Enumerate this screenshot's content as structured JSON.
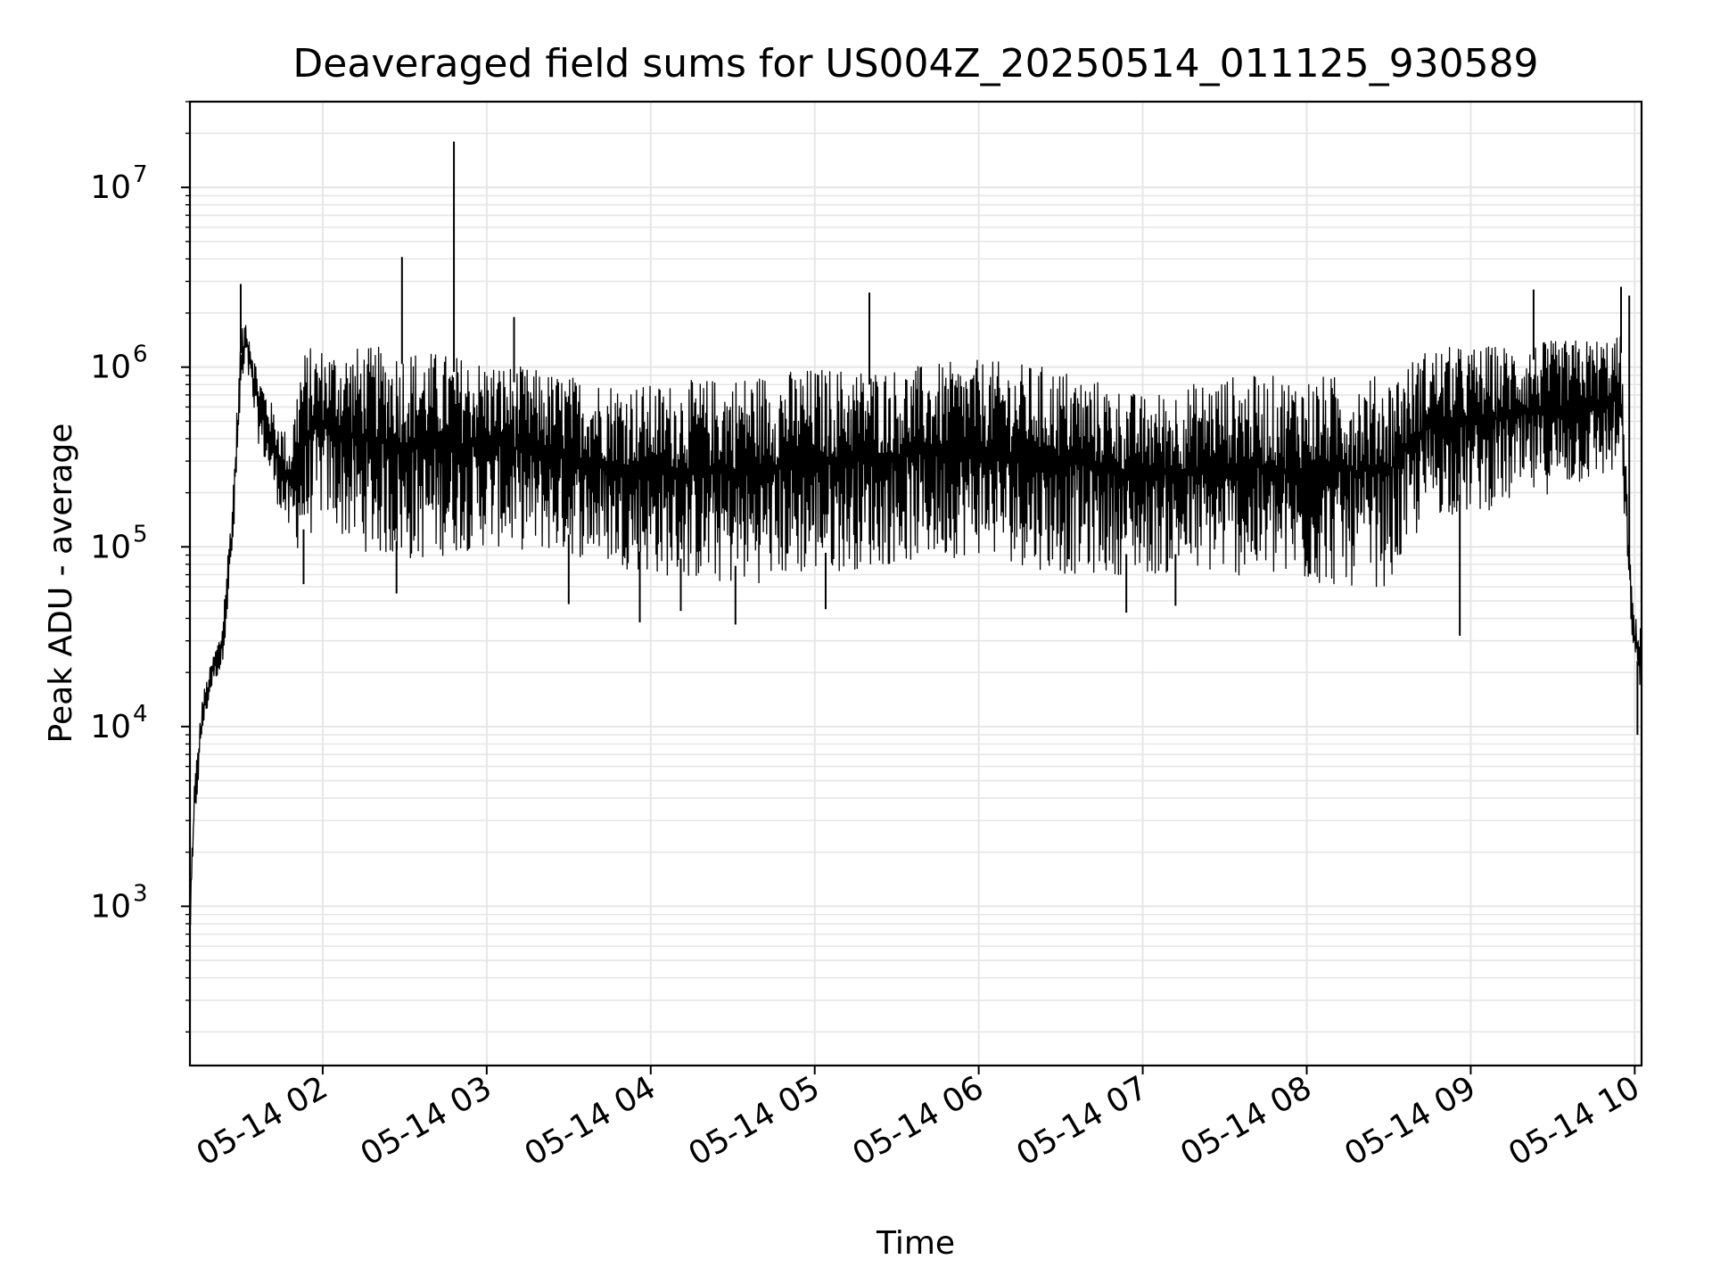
{
  "chart_data": {
    "type": "line",
    "title": "Deaveraged field sums for US004Z_20250514_011125_930589",
    "xlabel": "Time",
    "ylabel": "Peak ADU - average",
    "yscale": "log",
    "ylim": [
      130,
      30000000
    ],
    "xlim": [
      "2025-05-14 01:11:25",
      "2025-05-14 10:02:30"
    ],
    "grid": true,
    "line_color": "#000000",
    "grid_color": "#e6e6e6",
    "x_ticks": [
      {
        "label": "05-14 02",
        "value": "2025-05-14 02:00"
      },
      {
        "label": "05-14 03",
        "value": "2025-05-14 03:00"
      },
      {
        "label": "05-14 04",
        "value": "2025-05-14 04:00"
      },
      {
        "label": "05-14 05",
        "value": "2025-05-14 05:00"
      },
      {
        "label": "05-14 06",
        "value": "2025-05-14 06:00"
      },
      {
        "label": "05-14 07",
        "value": "2025-05-14 07:00"
      },
      {
        "label": "05-14 08",
        "value": "2025-05-14 08:00"
      },
      {
        "label": "05-14 09",
        "value": "2025-05-14 09:00"
      },
      {
        "label": "05-14 10",
        "value": "2025-05-14 10:00"
      }
    ],
    "y_ticks": [
      {
        "base": "10",
        "exp": "3",
        "value": 1000
      },
      {
        "base": "10",
        "exp": "4",
        "value": 10000
      },
      {
        "base": "10",
        "exp": "5",
        "value": 100000
      },
      {
        "base": "10",
        "exp": "6",
        "value": 1000000
      },
      {
        "base": "10",
        "exp": "7",
        "value": 10000000
      }
    ],
    "series": [
      {
        "envelope": [
          {
            "t": "01:11:25",
            "hi": 1000,
            "lo": 600
          },
          {
            "t": "01:13",
            "hi": 5000,
            "lo": 2500
          },
          {
            "t": "01:16",
            "hi": 15000,
            "lo": 9000
          },
          {
            "t": "01:20",
            "hi": 25000,
            "lo": 18000
          },
          {
            "t": "01:23",
            "hi": 35000,
            "lo": 20000
          },
          {
            "t": "01:27",
            "hi": 200000,
            "lo": 80000
          },
          {
            "t": "01:30",
            "hi": 1500000,
            "lo": 600000
          },
          {
            "t": "01:32",
            "hi": 2000000,
            "lo": 1000000
          },
          {
            "t": "01:36",
            "hi": 1000000,
            "lo": 400000
          },
          {
            "t": "01:42",
            "hi": 600000,
            "lo": 200000
          },
          {
            "t": "01:48",
            "hi": 400000,
            "lo": 110000
          },
          {
            "t": "01:52",
            "hi": 1200000,
            "lo": 90000
          },
          {
            "t": "01:55",
            "hi": 1300000,
            "lo": 110000
          },
          {
            "t": "02:00",
            "hi": 1300000,
            "lo": 150000
          },
          {
            "t": "02:10",
            "hi": 1300000,
            "lo": 100000
          },
          {
            "t": "02:30",
            "hi": 1300000,
            "lo": 80000
          },
          {
            "t": "03:00",
            "hi": 1100000,
            "lo": 100000
          },
          {
            "t": "03:30",
            "hi": 900000,
            "lo": 90000
          },
          {
            "t": "04:00",
            "hi": 800000,
            "lo": 70000
          },
          {
            "t": "04:30",
            "hi": 900000,
            "lo": 60000
          },
          {
            "t": "05:00",
            "hi": 1000000,
            "lo": 70000
          },
          {
            "t": "05:30",
            "hi": 1000000,
            "lo": 80000
          },
          {
            "t": "06:00",
            "hi": 1100000,
            "lo": 90000
          },
          {
            "t": "06:30",
            "hi": 1000000,
            "lo": 70000
          },
          {
            "t": "07:00",
            "hi": 700000,
            "lo": 70000
          },
          {
            "t": "07:30",
            "hi": 900000,
            "lo": 70000
          },
          {
            "t": "08:00",
            "hi": 900000,
            "lo": 60000
          },
          {
            "t": "08:30",
            "hi": 900000,
            "lo": 60000
          },
          {
            "t": "08:45",
            "hi": 1300000,
            "lo": 150000
          },
          {
            "t": "09:00",
            "hi": 1300000,
            "lo": 150000
          },
          {
            "t": "09:30",
            "hi": 1400000,
            "lo": 200000
          },
          {
            "t": "09:55",
            "hi": 1500000,
            "lo": 250000
          },
          {
            "t": "09:58",
            "hi": 100000,
            "lo": 50000
          },
          {
            "t": "10:00",
            "hi": 40000,
            "lo": 20000
          },
          {
            "t": "10:02:30",
            "hi": 40000,
            "lo": 15000
          }
        ],
        "dips": [
          {
            "t": "01:53",
            "v": 62000
          },
          {
            "t": "02:27",
            "v": 55000
          },
          {
            "t": "03:30",
            "v": 48000
          },
          {
            "t": "03:56",
            "v": 38000
          },
          {
            "t": "04:11",
            "v": 44000
          },
          {
            "t": "04:31",
            "v": 37000
          },
          {
            "t": "05:04",
            "v": 45000
          },
          {
            "t": "06:54",
            "v": 43000
          },
          {
            "t": "07:12",
            "v": 47000
          },
          {
            "t": "08:56",
            "v": 32000
          },
          {
            "t": "10:01",
            "v": 9000
          }
        ],
        "spikes": [
          {
            "t": "01:30",
            "v": 2900000
          },
          {
            "t": "02:29",
            "v": 4100000
          },
          {
            "t": "02:48",
            "v": 18000000
          },
          {
            "t": "03:10",
            "v": 1900000
          },
          {
            "t": "05:20",
            "v": 2600000
          },
          {
            "t": "09:23",
            "v": 2700000
          },
          {
            "t": "09:55",
            "v": 2800000
          },
          {
            "t": "09:58",
            "v": 2500000
          }
        ]
      }
    ]
  }
}
